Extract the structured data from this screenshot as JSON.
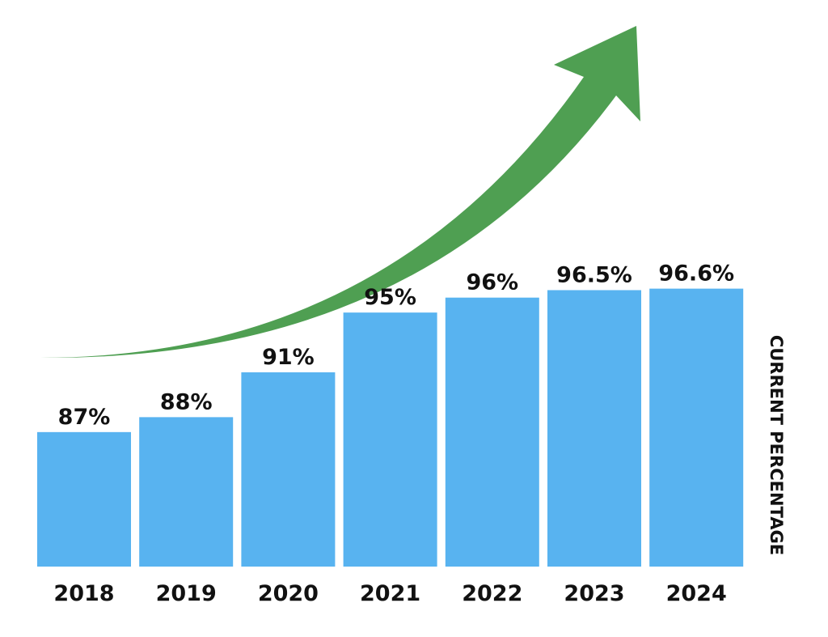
{
  "chart_data": {
    "type": "bar",
    "title": "",
    "xlabel": "",
    "ylabel": "CURRENT PERCENTAGE",
    "categories": [
      "2018",
      "2019",
      "2020",
      "2021",
      "2022",
      "2023",
      "2024"
    ],
    "values": [
      87,
      88,
      91,
      95,
      96,
      96.5,
      96.6
    ],
    "data_labels": [
      "87%",
      "88%",
      "91%",
      "95%",
      "96%",
      "96.5%",
      "96.6%"
    ],
    "ylim": [
      78,
      97.5
    ],
    "grid": false,
    "annotations": [
      "upward trend arrow"
    ],
    "colors": {
      "bar": "#58b3f0",
      "arrow": "#4f9f52",
      "text": "#111111"
    }
  }
}
